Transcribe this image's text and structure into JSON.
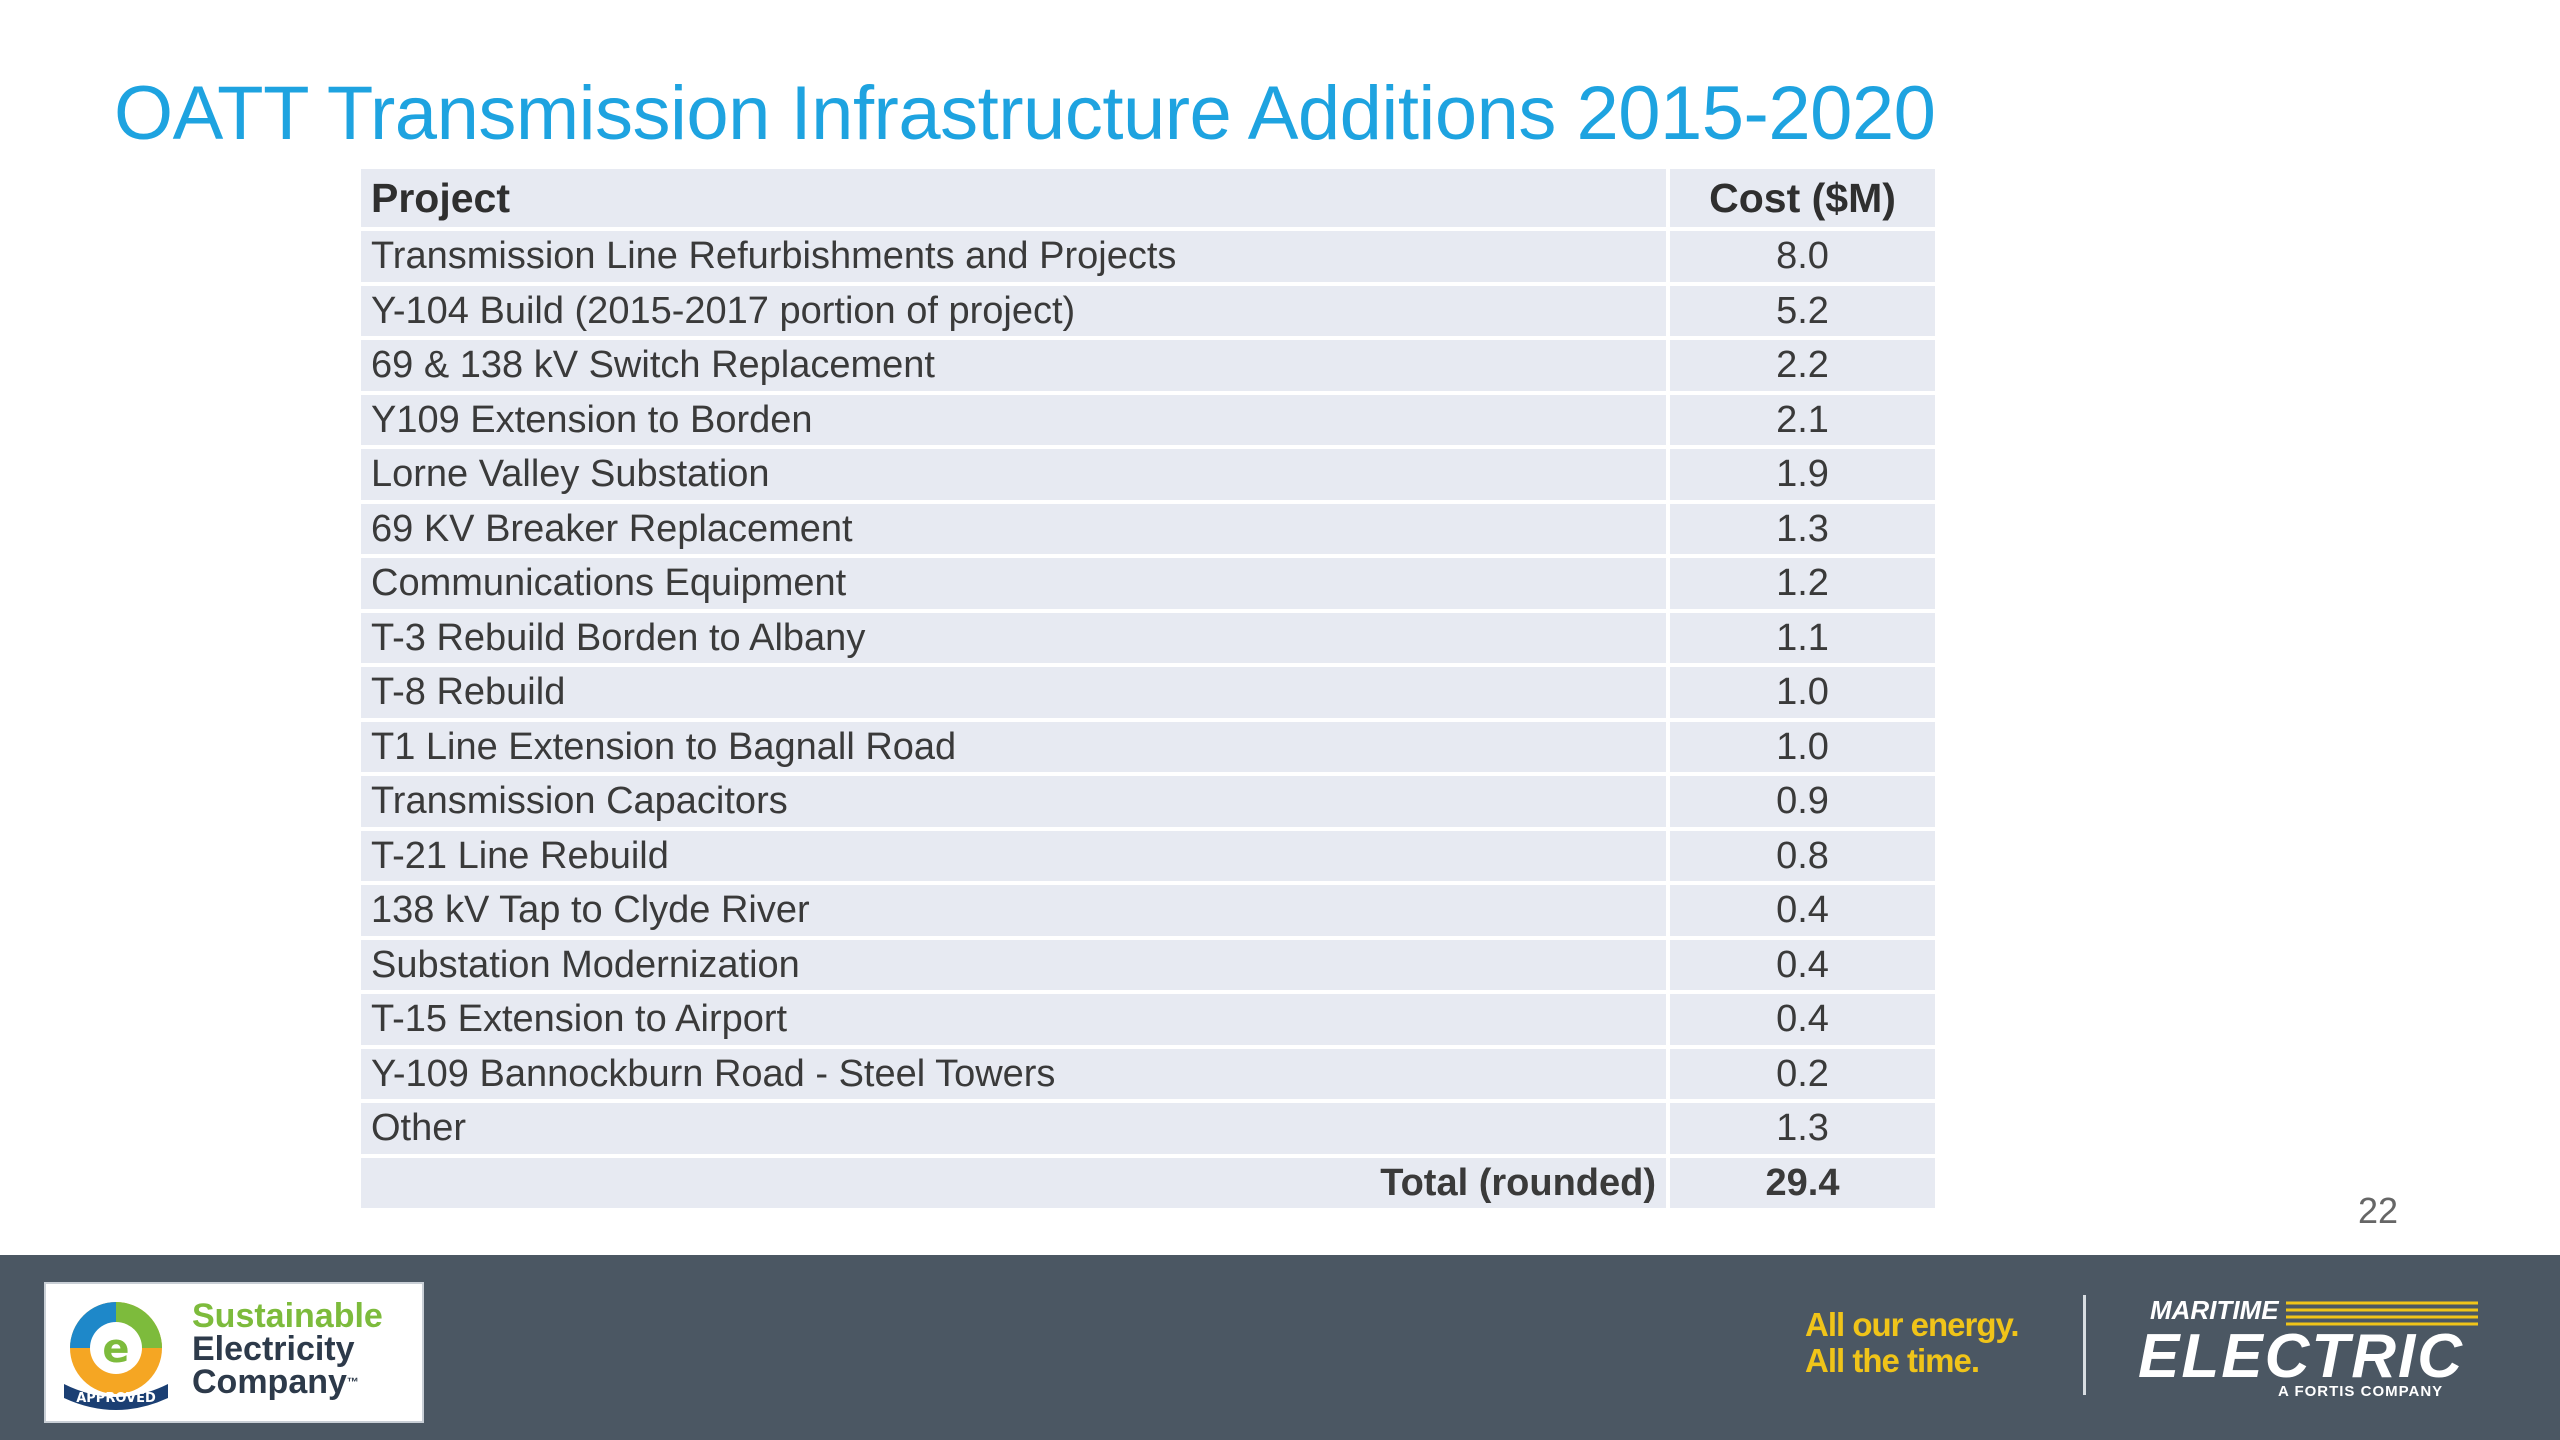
{
  "title": "OATT Transmission Infrastructure Additions 2015-2020",
  "table": {
    "headers": {
      "project": "Project",
      "cost": "Cost ($M)"
    },
    "rows": [
      {
        "project": "Transmission Line Refurbishments and Projects",
        "cost": "8.0"
      },
      {
        "project": "Y-104 Build (2015-2017 portion of project)",
        "cost": "5.2"
      },
      {
        "project": "69 & 138 kV Switch Replacement",
        "cost": "2.2"
      },
      {
        "project": "Y109 Extension to Borden",
        "cost": "2.1"
      },
      {
        "project": "Lorne Valley Substation",
        "cost": "1.9"
      },
      {
        "project": "69 KV Breaker Replacement",
        "cost": "1.3"
      },
      {
        "project": "Communications Equipment",
        "cost": "1.2"
      },
      {
        "project": "T-3 Rebuild Borden to Albany",
        "cost": "1.1"
      },
      {
        "project": "T-8 Rebuild",
        "cost": "1.0"
      },
      {
        "project": "T1 Line Extension to Bagnall Road",
        "cost": "1.0"
      },
      {
        "project": "Transmission Capacitors",
        "cost": "0.9"
      },
      {
        "project": "T-21 Line Rebuild",
        "cost": "0.8"
      },
      {
        "project": "138 kV Tap to Clyde River",
        "cost": "0.4"
      },
      {
        "project": "Substation Modernization",
        "cost": "0.4"
      },
      {
        "project": "T-15 Extension to Airport",
        "cost": "0.4"
      },
      {
        "project": "Y-109 Bannockburn Road - Steel Towers",
        "cost": "0.2"
      },
      {
        "project": "Other",
        "cost": "1.3"
      }
    ],
    "total": {
      "label": "Total (rounded)",
      "value": "29.4"
    }
  },
  "page_number": "22",
  "footer": {
    "badge": {
      "line1": "Sustainable",
      "line2": "Electricity",
      "line3": "Company",
      "trademark": "™",
      "seal_text": "APPROVED"
    },
    "tagline": {
      "line1": "All our energy.",
      "line2": "All the time."
    },
    "logo": {
      "top": "MARITIME",
      "main": "ELECTRIC",
      "sub": "A FORTIS COMPANY"
    }
  },
  "colors": {
    "title": "#1ea3e0",
    "table_cell": "#e7eaf2",
    "footer_bg": "#4b5763",
    "tagline": "#f0c419",
    "badge_green": "#7dbb3c"
  }
}
